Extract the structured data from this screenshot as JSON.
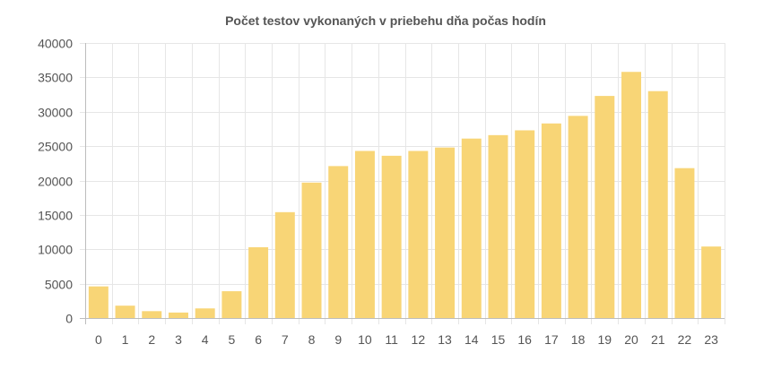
{
  "colors": {
    "bar": "#f8d576",
    "grid": "#e6e6e6",
    "text": "#555555"
  },
  "chart_data": {
    "type": "bar",
    "title": "Počet testov vykonaných v priebehu dňa počas hodín",
    "xlabel": "",
    "ylabel": "",
    "categories": [
      "0",
      "1",
      "2",
      "3",
      "4",
      "5",
      "6",
      "7",
      "8",
      "9",
      "10",
      "11",
      "12",
      "13",
      "14",
      "15",
      "16",
      "17",
      "18",
      "19",
      "20",
      "21",
      "22",
      "23"
    ],
    "values": [
      4600,
      1800,
      1000,
      800,
      1400,
      3900,
      10300,
      15400,
      19700,
      22100,
      24300,
      23600,
      24300,
      24800,
      26100,
      26600,
      27300,
      28300,
      29400,
      32300,
      35800,
      33000,
      21800,
      10400
    ],
    "ylim": [
      0,
      40000
    ],
    "yticks": [
      0,
      5000,
      10000,
      15000,
      20000,
      25000,
      30000,
      35000,
      40000
    ],
    "grid": true,
    "legend": "none"
  }
}
